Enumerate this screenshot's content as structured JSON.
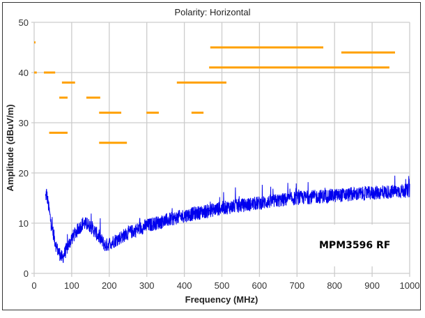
{
  "chart_data": {
    "type": "line",
    "title": "Polarity: Horizontal",
    "xlabel": "Frequency (MHz)",
    "ylabel": "Amplitude (dBuV/m)",
    "xlim": [
      0,
      1000
    ],
    "ylim": [
      0,
      50
    ],
    "xticks": [
      "0",
      "100",
      "200",
      "300",
      "400",
      "500",
      "600",
      "700",
      "800",
      "900",
      "1000"
    ],
    "yticks": [
      "0",
      "10",
      "20",
      "30",
      "40",
      "50"
    ],
    "grid": true,
    "annotation": "MPM3596 RF",
    "colors": {
      "trace": "#0000ee",
      "limits": "#ffa000",
      "grid": "#cccccc"
    },
    "limit_segments": [
      {
        "x": [
          0,
          2
        ],
        "y": 46
      },
      {
        "x": [
          0,
          7
        ],
        "y": 40
      },
      {
        "x": [
          26,
          56
        ],
        "y": 40
      },
      {
        "x": [
          74,
          109
        ],
        "y": 38
      },
      {
        "x": [
          67,
          89
        ],
        "y": 35
      },
      {
        "x": [
          40,
          89
        ],
        "y": 28
      },
      {
        "x": [
          139,
          176
        ],
        "y": 35
      },
      {
        "x": [
          173,
          232
        ],
        "y": 32
      },
      {
        "x": [
          173,
          247
        ],
        "y": 26
      },
      {
        "x": [
          299,
          332
        ],
        "y": 32
      },
      {
        "x": [
          380,
          512
        ],
        "y": 38
      },
      {
        "x": [
          419,
          451
        ],
        "y": 32
      },
      {
        "x": [
          469,
          770
        ],
        "y": 45
      },
      {
        "x": [
          466,
          946
        ],
        "y": 41
      },
      {
        "x": [
          818,
          961
        ],
        "y": 44
      }
    ],
    "trace_envelope": {
      "x": [
        30,
        33,
        45,
        60,
        75,
        100,
        130,
        150,
        190,
        250,
        300,
        400,
        500,
        600,
        700,
        800,
        900,
        1000
      ],
      "y": [
        15,
        16,
        10,
        5,
        3,
        7,
        10,
        9.5,
        5.5,
        8,
        9.5,
        11.5,
        13,
        14,
        15,
        15.5,
        16,
        16.5
      ]
    }
  }
}
